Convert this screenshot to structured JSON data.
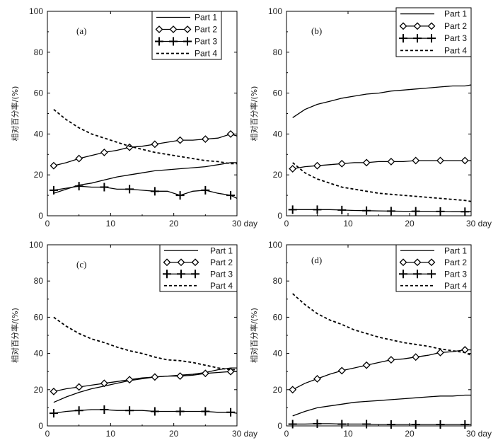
{
  "chart_data": [
    {
      "panel": "(a)",
      "type": "line",
      "xlim": [
        0,
        30
      ],
      "ylim": [
        0,
        100
      ],
      "xticks": [
        "0",
        "10",
        "20",
        "30 day"
      ],
      "yticks": [
        "0",
        "20",
        "40",
        "60",
        "80",
        "100"
      ],
      "ylabel": "相对百分率/(%)",
      "legend_position": "top-right",
      "series": [
        {
          "name": "Part 1",
          "style": "solid",
          "marker": "none",
          "x": [
            1,
            3,
            5,
            7,
            9,
            11,
            13,
            15,
            17,
            19,
            21,
            23,
            25,
            27,
            29,
            30
          ],
          "values": [
            11,
            13,
            15,
            16,
            17.5,
            19,
            20,
            21,
            22,
            22.5,
            23,
            23.5,
            24,
            25,
            26,
            26
          ]
        },
        {
          "name": "Part 2",
          "style": "solid",
          "marker": "diamond",
          "x": [
            1,
            3,
            5,
            7,
            9,
            11,
            13,
            15,
            17,
            19,
            21,
            23,
            25,
            27,
            29,
            30
          ],
          "values": [
            24.5,
            26,
            28,
            29.5,
            31,
            32,
            33.5,
            34,
            35,
            36,
            37,
            37,
            37.5,
            38,
            40,
            39
          ]
        },
        {
          "name": "Part 3",
          "style": "solid",
          "marker": "plus",
          "x": [
            1,
            3,
            5,
            7,
            9,
            11,
            13,
            15,
            17,
            19,
            21,
            23,
            25,
            27,
            29,
            30
          ],
          "values": [
            12.5,
            13.5,
            14.5,
            14,
            14,
            13,
            13,
            12.5,
            12,
            12,
            10,
            12,
            12.5,
            11,
            10,
            8.5
          ]
        },
        {
          "name": "Part 4",
          "style": "dashed",
          "marker": "none",
          "x": [
            1,
            3,
            5,
            7,
            9,
            11,
            13,
            15,
            17,
            19,
            21,
            23,
            25,
            27,
            29,
            30
          ],
          "values": [
            52,
            47,
            43,
            40,
            38,
            36,
            34,
            32.5,
            31,
            30,
            29,
            28,
            27,
            26.5,
            25.5,
            25.5
          ]
        }
      ],
      "marker_x": [
        1,
        5,
        9,
        13,
        17,
        21,
        25,
        29
      ]
    },
    {
      "panel": "(b)",
      "type": "line",
      "xlim": [
        0,
        30
      ],
      "ylim": [
        0,
        100
      ],
      "xticks": [
        "0",
        "10",
        "20",
        "30 day"
      ],
      "yticks": [
        "0",
        "20",
        "40",
        "60",
        "80",
        "100"
      ],
      "ylabel": "相对百分率/(%)",
      "legend_position": "top-right",
      "series": [
        {
          "name": "Part 1",
          "style": "solid",
          "marker": "none",
          "x": [
            1,
            3,
            5,
            7,
            9,
            11,
            13,
            15,
            17,
            19,
            21,
            23,
            25,
            27,
            29,
            30
          ],
          "values": [
            48,
            52,
            54.5,
            56,
            57.5,
            58.5,
            59.5,
            60,
            61,
            61.5,
            62,
            62.5,
            63,
            63.5,
            63.5,
            64
          ]
        },
        {
          "name": "Part 2",
          "style": "solid",
          "marker": "diamond",
          "x": [
            1,
            3,
            5,
            7,
            9,
            11,
            13,
            15,
            17,
            19,
            21,
            23,
            25,
            27,
            29,
            30
          ],
          "values": [
            23,
            24,
            24.5,
            25,
            25.5,
            26,
            26,
            26.5,
            26.5,
            26.5,
            27,
            27,
            27,
            27,
            27,
            27
          ]
        },
        {
          "name": "Part 3",
          "style": "solid",
          "marker": "plus",
          "x": [
            1,
            3,
            5,
            7,
            9,
            11,
            13,
            15,
            17,
            19,
            21,
            23,
            25,
            27,
            29,
            30
          ],
          "values": [
            3,
            3,
            3,
            3,
            2.8,
            2.6,
            2.5,
            2.4,
            2.3,
            2.2,
            2.2,
            2.2,
            2.1,
            2,
            2,
            2
          ]
        },
        {
          "name": "Part 4",
          "style": "dashed",
          "marker": "none",
          "x": [
            1,
            3,
            5,
            7,
            9,
            11,
            13,
            15,
            17,
            19,
            21,
            23,
            25,
            27,
            29,
            30
          ],
          "values": [
            26,
            21,
            18,
            16,
            14,
            13,
            12,
            11,
            10.5,
            10,
            9.5,
            9,
            8.5,
            8,
            7.5,
            7
          ]
        }
      ],
      "marker_x": [
        1,
        5,
        9,
        13,
        17,
        21,
        25,
        29
      ]
    },
    {
      "panel": "(c)",
      "type": "line",
      "xlim": [
        0,
        30
      ],
      "ylim": [
        0,
        100
      ],
      "xticks": [
        "0",
        "10",
        "20",
        "30 day"
      ],
      "yticks": [
        "0",
        "20",
        "40",
        "60",
        "80",
        "100"
      ],
      "ylabel": "相对百分率/(%)",
      "legend_position": "top-right",
      "series": [
        {
          "name": "Part 1",
          "style": "solid",
          "marker": "none",
          "x": [
            1,
            3,
            5,
            7,
            9,
            11,
            13,
            15,
            17,
            19,
            21,
            23,
            25,
            27,
            29,
            30
          ],
          "values": [
            13,
            16,
            18.5,
            20.5,
            22,
            23.5,
            25,
            26,
            27,
            27.5,
            28,
            28.5,
            29.5,
            31,
            32,
            32
          ]
        },
        {
          "name": "Part 2",
          "style": "solid",
          "marker": "diamond",
          "x": [
            1,
            3,
            5,
            7,
            9,
            11,
            13,
            15,
            17,
            19,
            21,
            23,
            25,
            27,
            29,
            30
          ],
          "values": [
            19,
            20.5,
            21.5,
            22.5,
            23.5,
            24.5,
            25.5,
            26.5,
            27,
            27.5,
            27.5,
            28,
            29,
            29.5,
            30,
            30
          ]
        },
        {
          "name": "Part 3",
          "style": "solid",
          "marker": "plus",
          "x": [
            1,
            3,
            5,
            7,
            9,
            11,
            13,
            15,
            17,
            19,
            21,
            23,
            25,
            27,
            29,
            30
          ],
          "values": [
            7,
            8,
            8.5,
            9,
            9,
            8.5,
            8.5,
            8.5,
            8,
            8,
            8,
            8,
            8,
            7.5,
            7.5,
            7
          ]
        },
        {
          "name": "Part 4",
          "style": "dashed",
          "marker": "none",
          "x": [
            1,
            3,
            5,
            7,
            9,
            11,
            13,
            15,
            17,
            19,
            21,
            23,
            25,
            27,
            29,
            30
          ],
          "values": [
            60,
            55,
            51,
            48,
            46,
            43.5,
            41.5,
            40,
            38,
            36.5,
            36,
            35,
            33.5,
            32,
            31,
            31
          ]
        }
      ],
      "marker_x": [
        1,
        5,
        9,
        13,
        17,
        21,
        25,
        29
      ]
    },
    {
      "panel": "(d)",
      "type": "line",
      "xlim": [
        0,
        30
      ],
      "ylim": [
        0,
        100
      ],
      "xticks": [
        "0",
        "10",
        "20",
        "30 day"
      ],
      "yticks": [
        "0",
        "20",
        "40",
        "60",
        "80",
        "100"
      ],
      "ylabel": "相对百分率/(%)",
      "legend_position": "top-right",
      "series": [
        {
          "name": "Part 1",
          "style": "solid",
          "marker": "none",
          "x": [
            1,
            3,
            5,
            7,
            9,
            11,
            13,
            15,
            17,
            19,
            21,
            23,
            25,
            27,
            29,
            30
          ],
          "values": [
            5.5,
            8,
            10,
            11,
            12,
            13,
            13.5,
            14,
            14.5,
            15,
            15.5,
            16,
            16.5,
            16.5,
            17,
            17
          ]
        },
        {
          "name": "Part 2",
          "style": "solid",
          "marker": "diamond",
          "x": [
            1,
            3,
            5,
            7,
            9,
            11,
            13,
            15,
            17,
            19,
            21,
            23,
            25,
            27,
            29,
            30
          ],
          "values": [
            20,
            23.5,
            26,
            28.5,
            30.5,
            32,
            33.5,
            35,
            36.5,
            37,
            38,
            39,
            40.5,
            41,
            42,
            42
          ]
        },
        {
          "name": "Part 3",
          "style": "solid",
          "marker": "plus",
          "x": [
            1,
            3,
            5,
            7,
            9,
            11,
            13,
            15,
            17,
            19,
            21,
            23,
            25,
            27,
            29,
            30
          ],
          "values": [
            1,
            1,
            1.2,
            1.2,
            1,
            1,
            1,
            0.8,
            0.8,
            0.8,
            0.8,
            0.8,
            0.8,
            0.8,
            0.8,
            0.8
          ]
        },
        {
          "name": "Part 4",
          "style": "dashed",
          "marker": "none",
          "x": [
            1,
            3,
            5,
            7,
            9,
            11,
            13,
            15,
            17,
            19,
            21,
            23,
            25,
            27,
            29,
            30
          ],
          "values": [
            73,
            67,
            62,
            58.5,
            56,
            53,
            51,
            49,
            47.5,
            46,
            45,
            44,
            42.5,
            41.5,
            40.5,
            39
          ]
        }
      ],
      "marker_x": [
        1,
        5,
        9,
        13,
        17,
        21,
        25,
        29
      ]
    }
  ]
}
